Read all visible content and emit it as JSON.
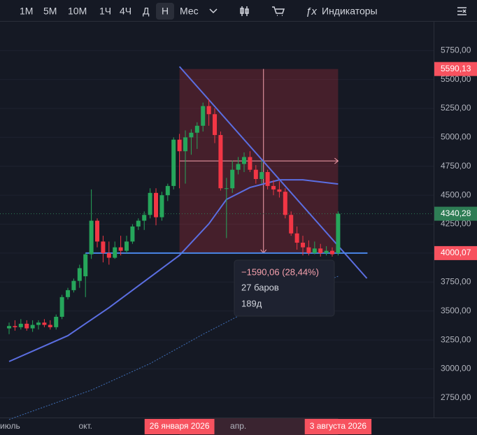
{
  "toolbar": {
    "intervals": [
      "1М",
      "5М",
      "10М",
      "1Ч",
      "4Ч",
      "Д",
      "Н",
      "Мес"
    ],
    "active": 6,
    "indicators": "Индикаторы"
  },
  "chart_data": {
    "type": "candlestick",
    "categories": [
      "июль",
      null,
      null,
      null,
      null,
      null,
      null,
      null,
      null,
      null,
      null,
      null,
      null,
      "окт.",
      null,
      null,
      null,
      null,
      null,
      null,
      null,
      null,
      null,
      null,
      null,
      null,
      null,
      null,
      null,
      "26 января 2026",
      null,
      null,
      null,
      null,
      null,
      null,
      null,
      null,
      null,
      "апр.",
      null,
      null,
      null,
      null,
      null,
      null,
      null,
      null,
      null,
      null,
      null,
      null,
      null,
      null,
      null,
      null,
      "3 августа 2026"
    ],
    "highlight_categories": [
      29,
      56
    ],
    "open": [
      3350,
      3370,
      3360,
      3390,
      3350,
      3380,
      3400,
      3380,
      3360,
      3450,
      3620,
      3680,
      3760,
      3800,
      3990,
      4280,
      4100,
      4000,
      3960,
      4050,
      4020,
      4100,
      4230,
      4280,
      4330,
      4520,
      4310,
      4500,
      4580,
      4980,
      4880,
      5000,
      5040,
      5100,
      5270,
      5200,
      5020,
      4560,
      4560,
      4720,
      4770,
      4830,
      4720,
      4640,
      4700,
      4580,
      4550,
      4530,
      4330,
      4170,
      4090,
      4050,
      4000,
      4040,
      4000,
      4020,
      4000
    ],
    "high": [
      3400,
      3420,
      3430,
      3420,
      3420,
      3420,
      3430,
      3420,
      3470,
      3640,
      3700,
      3780,
      3900,
      4000,
      4550,
      4300,
      4150,
      4100,
      4100,
      4150,
      4150,
      4250,
      4300,
      4360,
      4560,
      4560,
      4530,
      4600,
      5000,
      5030,
      5060,
      5070,
      5130,
      5300,
      5330,
      5250,
      5050,
      4650,
      4800,
      4830,
      4870,
      4880,
      4760,
      4800,
      4720,
      4630,
      4620,
      4560,
      4360,
      4230,
      4150,
      4110,
      4100,
      4080,
      4060,
      4050,
      4360
    ],
    "low": [
      3300,
      3330,
      3340,
      3330,
      3320,
      3340,
      3360,
      3340,
      3340,
      3430,
      3600,
      3660,
      3700,
      3620,
      3950,
      4050,
      3920,
      3900,
      3950,
      3980,
      4000,
      4080,
      4200,
      4200,
      4300,
      4240,
      4280,
      4450,
      4550,
      4560,
      4600,
      4850,
      4900,
      5050,
      5100,
      4950,
      4540,
      4130,
      4520,
      4680,
      4700,
      4700,
      4600,
      4600,
      4550,
      4500,
      4480,
      4300,
      4150,
      4030,
      3980,
      3980,
      3990,
      3970,
      3980,
      3970,
      3980
    ],
    "close": [
      3370,
      3360,
      3390,
      3350,
      3380,
      3400,
      3380,
      3360,
      3450,
      3620,
      3680,
      3760,
      3870,
      3990,
      4280,
      4100,
      4000,
      3960,
      4050,
      4020,
      4100,
      4230,
      4280,
      4330,
      4520,
      4310,
      4500,
      4580,
      4980,
      4880,
      5000,
      5040,
      5100,
      5270,
      5200,
      5020,
      4560,
      4560,
      4720,
      4770,
      4830,
      4720,
      4640,
      4700,
      4580,
      4550,
      4530,
      4330,
      4170,
      4090,
      4050,
      4000,
      4040,
      4000,
      4020,
      3990,
      4340
    ],
    "up_color": "#26a65b",
    "down_color": "#f23645",
    "xlim": [
      -1.55,
      72.26
    ],
    "ylim": [
      2580,
      6005
    ],
    "yticks": [
      {
        "value": 5750,
        "label": "5750,00"
      },
      {
        "value": 5500,
        "label": "5500,00"
      },
      {
        "value": 5250,
        "label": "5250,00"
      },
      {
        "value": 5000,
        "label": "5000,00"
      },
      {
        "value": 4750,
        "label": "4750,00"
      },
      {
        "value": 4500,
        "label": "4500,00"
      },
      {
        "value": 4250,
        "label": "4250,00"
      },
      {
        "value": 4000,
        "label": "4000,00"
      },
      {
        "value": 3750,
        "label": "3750,00"
      },
      {
        "value": 3500,
        "label": "3500,00"
      },
      {
        "value": 3250,
        "label": "3250,00"
      },
      {
        "value": 3000,
        "label": "3000,00"
      },
      {
        "value": 2750,
        "label": "2750,00"
      }
    ],
    "overlays": [
      {
        "color": "#5b6ee1",
        "dashed": false,
        "x": [
          0,
          10,
          17,
          25,
          29,
          34,
          37,
          41,
          46,
          50,
          54,
          56
        ],
        "values": [
          3064,
          3287,
          3529,
          3830,
          3981,
          4253,
          4464,
          4567,
          4633,
          4633,
          4609,
          4597
        ]
      },
      {
        "color": "#3f6fb8",
        "dashed": true,
        "x": [
          0,
          14,
          24,
          33,
          39,
          45,
          53,
          56
        ],
        "values": [
          2563,
          2817,
          3046,
          3299,
          3456,
          3589,
          3740,
          3800
        ]
      },
      {
        "color": "#5b6ee1",
        "dashed": false,
        "x": [
          29,
          60.9
        ],
        "values": [
          5611,
          3782
        ]
      },
      {
        "color": "#4a86e8",
        "dashed": false,
        "x": [
          13,
          61
        ],
        "values": [
          4000.07,
          4000.07
        ]
      }
    ],
    "price_tags": [
      {
        "value": 5590.13,
        "label": "5590,13",
        "color": "#f7525f"
      },
      {
        "value": 4340.28,
        "label": "4340,28",
        "color": "#2e7d55"
      },
      {
        "value": 4000.07,
        "label": "4000,07",
        "color": "#f7525f"
      }
    ],
    "measure": {
      "from": 29,
      "to": 56,
      "cross_x": 43.3,
      "cross_y": 4796,
      "change": "−1590,06 (28,44%)",
      "bars": "27 баров",
      "days": "189д"
    }
  }
}
